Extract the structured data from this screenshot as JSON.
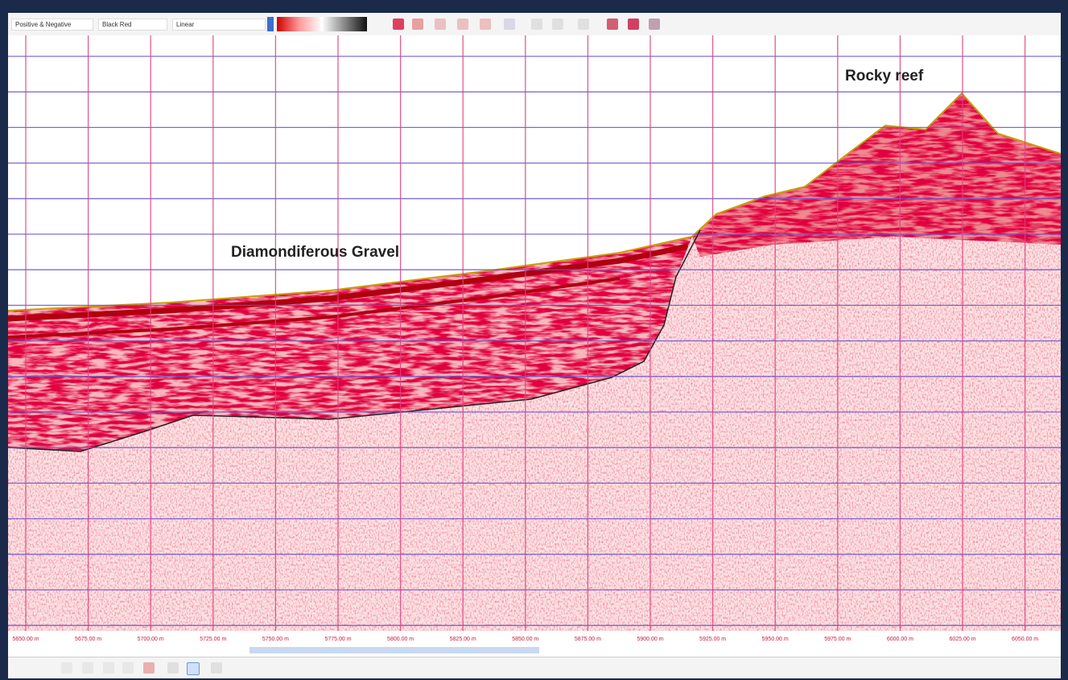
{
  "toolbar": {
    "palette_mode": "Positive & Negative",
    "color_map": "Black Red",
    "scale": "Linear"
  },
  "annotations": {
    "gravel": "Diamondiferous Gravel",
    "reef": "Rocky reef"
  },
  "x_axis": {
    "labels": [
      "5650.00 m",
      "5675.00 m",
      "5700.00 m",
      "5725.00 m",
      "5750.00 m",
      "5775.00 m",
      "5800.00 m",
      "5825.00 m",
      "5850.00 m",
      "5875.00 m",
      "5900.00 m",
      "5925.00 m",
      "5950.00 m",
      "5975.00 m",
      "6000.00 m",
      "6025.00 m",
      "6050.00 m"
    ]
  }
}
